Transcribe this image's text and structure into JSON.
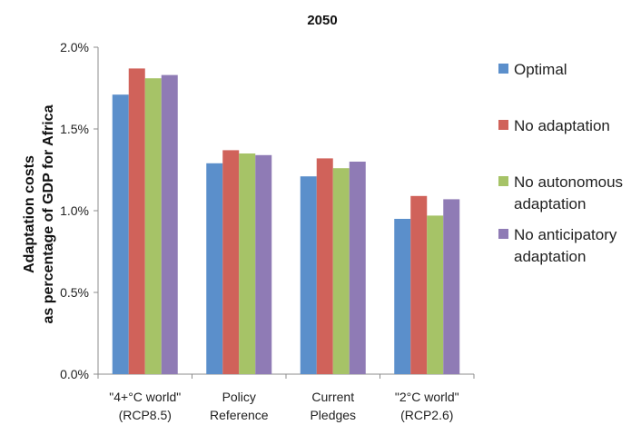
{
  "chart_data": {
    "type": "bar",
    "title": "2050",
    "ylabel_lines": [
      "Adaptation costs",
      "as percentage of GDP for Africa"
    ],
    "categories": [
      [
        "\"4+°C world\"",
        "(RCP8.5)"
      ],
      [
        "Policy",
        "Reference"
      ],
      [
        "Current",
        "Pledges"
      ],
      [
        "\"2°C world\"",
        "(RCP2.6)"
      ]
    ],
    "yticks": [
      0.0,
      0.5,
      1.0,
      1.5,
      2.0
    ],
    "ytick_labels": [
      "0.0%",
      "0.5%",
      "1.0%",
      "1.5%",
      "2.0%"
    ],
    "ylim": [
      0,
      2.0
    ],
    "grid": false,
    "legend_position": "right",
    "series": [
      {
        "name": "Optimal",
        "legend_lines": [
          "Optimal"
        ],
        "color": "#5B8FCB",
        "values": [
          1.71,
          1.29,
          1.21,
          0.95
        ]
      },
      {
        "name": "No adaptation",
        "legend_lines": [
          "No adaptation"
        ],
        "color": "#D0625A",
        "values": [
          1.87,
          1.37,
          1.32,
          1.09
        ]
      },
      {
        "name": "No autonomous adaptation",
        "legend_lines": [
          "No autonomous",
          "adaptation"
        ],
        "color": "#A6C367",
        "values": [
          1.81,
          1.35,
          1.26,
          0.97
        ]
      },
      {
        "name": "No anticipatory adaptation",
        "legend_lines": [
          "No anticipatory",
          "adaptation"
        ],
        "color": "#8F7BB5",
        "values": [
          1.83,
          1.34,
          1.3,
          1.07
        ]
      }
    ]
  }
}
